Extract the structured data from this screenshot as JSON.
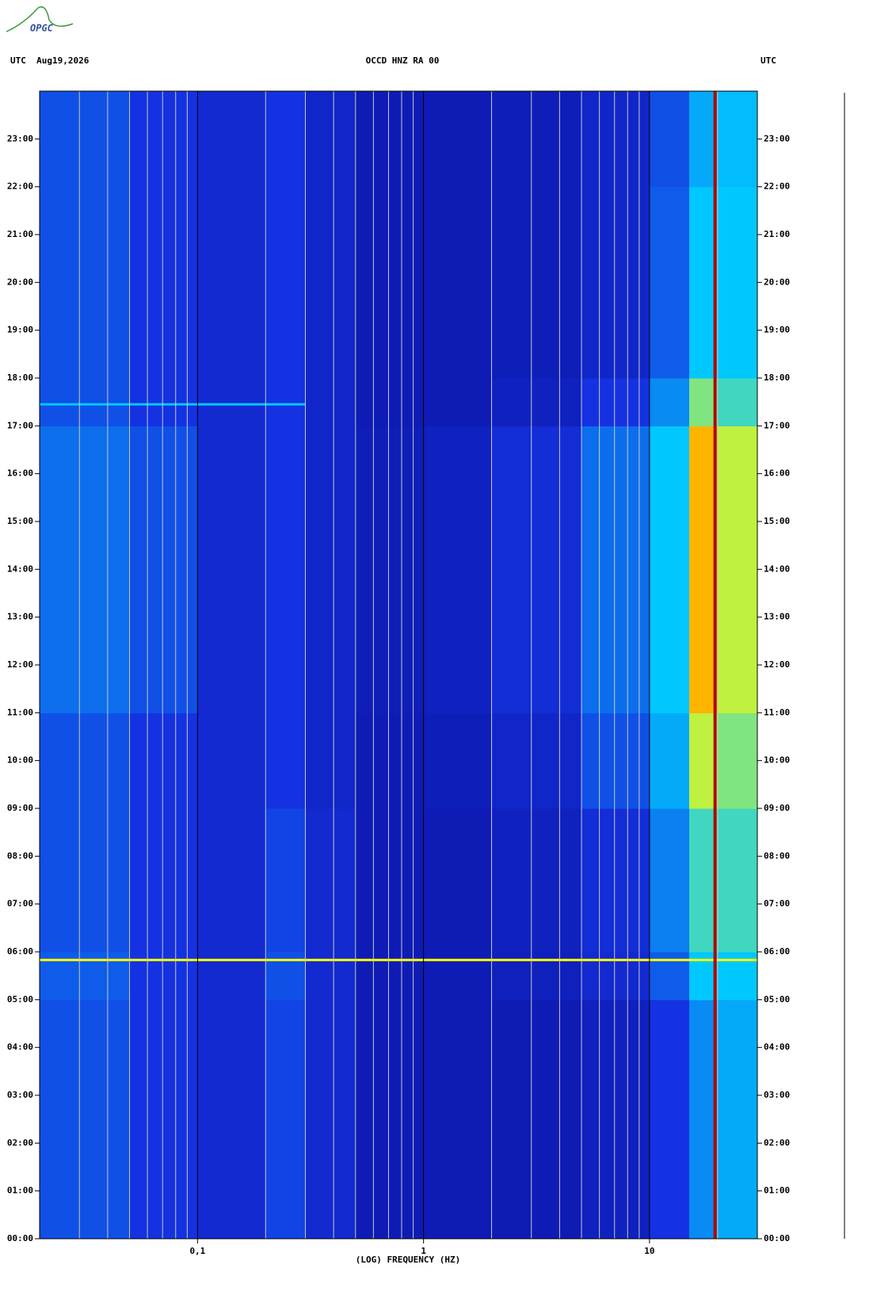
{
  "logo": "OPGC",
  "chart_data": {
    "type": "spectrogram",
    "title": "OCCD HNZ RA 00",
    "left_header": "UTC  Aug19,2026",
    "right_header": "UTC",
    "x_label": "(LOG) FREQUENCY (HZ)",
    "xscale": "log",
    "xlim": [
      0.02,
      30
    ],
    "xticks": [
      {
        "value": 0.1,
        "label": "0,1"
      },
      1,
      10
    ],
    "xminorticks": [
      0.03,
      0.04,
      0.05,
      0.06,
      0.07,
      0.08,
      0.09,
      0.2,
      0.3,
      0.4,
      0.5,
      0.6,
      0.7,
      0.8,
      0.9,
      2,
      3,
      4,
      5,
      6,
      7,
      8,
      9,
      20
    ],
    "ylim": [
      0,
      24
    ],
    "yticks": [
      {
        "value": 0,
        "label": "00:00"
      },
      {
        "value": 1,
        "label": "01:00"
      },
      {
        "value": 2,
        "label": "02:00"
      },
      {
        "value": 3,
        "label": "03:00"
      },
      {
        "value": 4,
        "label": "04:00"
      },
      {
        "value": 5,
        "label": "05:00"
      },
      {
        "value": 6,
        "label": "06:00"
      },
      {
        "value": 7,
        "label": "07:00"
      },
      {
        "value": 8,
        "label": "08:00"
      },
      {
        "value": 9,
        "label": "09:00"
      },
      {
        "value": 10,
        "label": "10:00"
      },
      {
        "value": 11,
        "label": "11:00"
      },
      {
        "value": 12,
        "label": "12:00"
      },
      {
        "value": 13,
        "label": "13:00"
      },
      {
        "value": 14,
        "label": "14:00"
      },
      {
        "value": 15,
        "label": "15:00"
      },
      {
        "value": 16,
        "label": "16:00"
      },
      {
        "value": 17,
        "label": "17:00"
      },
      {
        "value": 18,
        "label": "18:00"
      },
      {
        "value": 19,
        "label": "19:00"
      },
      {
        "value": 20,
        "label": "20:00"
      },
      {
        "value": 21,
        "label": "21:00"
      },
      {
        "value": 22,
        "label": "22:00"
      },
      {
        "value": 23,
        "label": "23:00"
      }
    ],
    "freq_bins": [
      0.02,
      0.05,
      0.1,
      0.2,
      0.3,
      0.5,
      1,
      2,
      5,
      10,
      15,
      20,
      30
    ],
    "hours": [
      0,
      1,
      2,
      3,
      4,
      5,
      6,
      7,
      8,
      9,
      10,
      11,
      12,
      13,
      14,
      15,
      16,
      17,
      18,
      19,
      20,
      21,
      22,
      23,
      24
    ],
    "intensity": [
      [
        0.3,
        0.25,
        0.2,
        0.28,
        0.2,
        0.12,
        0.12,
        0.12,
        0.15,
        0.25,
        0.4,
        0.45
      ],
      [
        0.3,
        0.25,
        0.2,
        0.28,
        0.2,
        0.12,
        0.12,
        0.12,
        0.15,
        0.25,
        0.4,
        0.45
      ],
      [
        0.3,
        0.25,
        0.2,
        0.28,
        0.2,
        0.12,
        0.12,
        0.12,
        0.15,
        0.25,
        0.4,
        0.45
      ],
      [
        0.3,
        0.25,
        0.2,
        0.28,
        0.2,
        0.12,
        0.12,
        0.12,
        0.15,
        0.25,
        0.4,
        0.45
      ],
      [
        0.3,
        0.25,
        0.2,
        0.28,
        0.2,
        0.12,
        0.12,
        0.12,
        0.15,
        0.25,
        0.4,
        0.45
      ],
      [
        0.32,
        0.25,
        0.2,
        0.3,
        0.2,
        0.12,
        0.12,
        0.14,
        0.2,
        0.32,
        0.5,
        0.5
      ],
      [
        0.3,
        0.25,
        0.2,
        0.28,
        0.2,
        0.12,
        0.12,
        0.15,
        0.22,
        0.38,
        0.55,
        0.55
      ],
      [
        0.3,
        0.25,
        0.2,
        0.28,
        0.2,
        0.12,
        0.12,
        0.15,
        0.22,
        0.38,
        0.55,
        0.55
      ],
      [
        0.3,
        0.25,
        0.2,
        0.28,
        0.2,
        0.12,
        0.12,
        0.15,
        0.22,
        0.38,
        0.55,
        0.55
      ],
      [
        0.3,
        0.25,
        0.2,
        0.25,
        0.18,
        0.12,
        0.13,
        0.18,
        0.3,
        0.45,
        0.65,
        0.6
      ],
      [
        0.3,
        0.25,
        0.2,
        0.25,
        0.18,
        0.12,
        0.13,
        0.18,
        0.3,
        0.45,
        0.65,
        0.6
      ],
      [
        0.35,
        0.3,
        0.2,
        0.25,
        0.18,
        0.13,
        0.15,
        0.22,
        0.35,
        0.5,
        0.75,
        0.65
      ],
      [
        0.35,
        0.3,
        0.2,
        0.25,
        0.18,
        0.13,
        0.15,
        0.22,
        0.35,
        0.5,
        0.75,
        0.65
      ],
      [
        0.35,
        0.3,
        0.2,
        0.25,
        0.18,
        0.13,
        0.15,
        0.22,
        0.35,
        0.5,
        0.75,
        0.65
      ],
      [
        0.35,
        0.3,
        0.2,
        0.25,
        0.18,
        0.13,
        0.15,
        0.22,
        0.35,
        0.5,
        0.75,
        0.65
      ],
      [
        0.35,
        0.3,
        0.2,
        0.25,
        0.18,
        0.13,
        0.15,
        0.22,
        0.35,
        0.5,
        0.75,
        0.65
      ],
      [
        0.35,
        0.3,
        0.2,
        0.25,
        0.18,
        0.13,
        0.15,
        0.22,
        0.35,
        0.5,
        0.75,
        0.65
      ],
      [
        0.3,
        0.25,
        0.2,
        0.25,
        0.18,
        0.12,
        0.12,
        0.15,
        0.25,
        0.4,
        0.6,
        0.55
      ],
      [
        0.3,
        0.25,
        0.2,
        0.25,
        0.18,
        0.12,
        0.12,
        0.13,
        0.18,
        0.32,
        0.5,
        0.5
      ],
      [
        0.3,
        0.25,
        0.2,
        0.25,
        0.18,
        0.12,
        0.12,
        0.13,
        0.18,
        0.32,
        0.5,
        0.5
      ],
      [
        0.3,
        0.25,
        0.2,
        0.25,
        0.18,
        0.12,
        0.12,
        0.13,
        0.18,
        0.32,
        0.5,
        0.5
      ],
      [
        0.3,
        0.25,
        0.2,
        0.25,
        0.18,
        0.12,
        0.12,
        0.13,
        0.18,
        0.32,
        0.5,
        0.5
      ],
      [
        0.3,
        0.25,
        0.2,
        0.25,
        0.18,
        0.12,
        0.12,
        0.13,
        0.18,
        0.3,
        0.45,
        0.48
      ],
      [
        0.3,
        0.25,
        0.2,
        0.25,
        0.18,
        0.12,
        0.12,
        0.13,
        0.18,
        0.3,
        0.45,
        0.48
      ]
    ],
    "spectral_lines": [
      {
        "freq": 19.5,
        "intensity": 0.95
      }
    ],
    "events": [
      {
        "time": 5.83,
        "fmin": 0.02,
        "fmax": 30,
        "intensity": 0.7
      },
      {
        "time": 17.45,
        "fmin": 0.02,
        "fmax": 0.3,
        "intensity": 0.5
      }
    ]
  }
}
